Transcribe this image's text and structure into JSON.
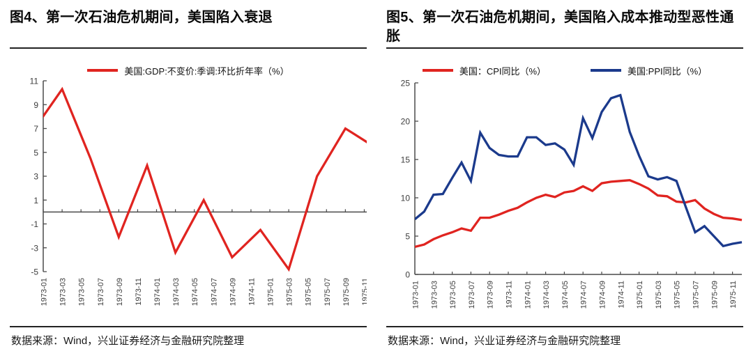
{
  "chart_data": [
    {
      "type": "line",
      "title": "图4、第一次石油危机期间，美国陷入衰退",
      "source": "数据来源：Wind，兴业证券经济与金融研究院整理",
      "legend_position": "top",
      "grid": false,
      "x_range": [
        "1973-01",
        "1975-12"
      ],
      "x_tick_labels": [
        "1973-01",
        "1973-03",
        "1973-05",
        "1973-07",
        "1973-09",
        "1973-11",
        "1974-01",
        "1974-03",
        "1974-05",
        "1974-07",
        "1974-09",
        "1974-11",
        "1975-01",
        "1975-03",
        "1975-05",
        "1975-07",
        "1975-09",
        "1975-11"
      ],
      "ylim": [
        -5,
        11
      ],
      "y_ticks": [
        11,
        9,
        7,
        5,
        3,
        1,
        -1,
        -3,
        -5
      ],
      "x_axis_at_value": 0,
      "axis_color": "#4a4a4a",
      "series": [
        {
          "name": "美国:GDP:不变价:季调:环比折年率（%）",
          "color": "#e02420",
          "x": [
            "1972-12",
            "1973-03",
            "1973-06",
            "1973-09",
            "1973-12",
            "1974-03",
            "1974-06",
            "1974-09",
            "1974-12",
            "1975-03",
            "1975-06",
            "1975-09",
            "1975-12"
          ],
          "values": [
            6.9,
            10.3,
            4.5,
            -2.1,
            3.9,
            -3.4,
            1.0,
            -3.8,
            -1.5,
            -4.8,
            3.0,
            7.0,
            5.5
          ]
        }
      ]
    },
    {
      "type": "line",
      "title": "图5、第一次石油危机期间，美国陷入成本推动型恶性通胀",
      "source": "数据来源：Wind，兴业证券经济与金融研究院整理",
      "legend_position": "top",
      "grid": false,
      "x_range": [
        "1973-01",
        "1975-12"
      ],
      "x_tick_labels": [
        "1973-01",
        "1973-03",
        "1973-05",
        "1973-07",
        "1973-09",
        "1973-11",
        "1974-01",
        "1974-03",
        "1974-05",
        "1974-07",
        "1974-09",
        "1974-11",
        "1975-01",
        "1975-03",
        "1975-05",
        "1975-07",
        "1975-09",
        "1975-11"
      ],
      "ylim": [
        0,
        25
      ],
      "y_ticks": [
        0,
        5,
        10,
        15,
        20,
        25
      ],
      "x_axis_at_value": 0,
      "axis_color": "#4a4a4a",
      "x": [
        "1973-01",
        "1973-02",
        "1973-03",
        "1973-04",
        "1973-05",
        "1973-06",
        "1973-07",
        "1973-08",
        "1973-09",
        "1973-10",
        "1973-11",
        "1973-12",
        "1974-01",
        "1974-02",
        "1974-03",
        "1974-04",
        "1974-05",
        "1974-06",
        "1974-07",
        "1974-08",
        "1974-09",
        "1974-10",
        "1974-11",
        "1974-12",
        "1975-01",
        "1975-02",
        "1975-03",
        "1975-04",
        "1975-05",
        "1975-06",
        "1975-07",
        "1975-08",
        "1975-09",
        "1975-10",
        "1975-11",
        "1975-12"
      ],
      "series": [
        {
          "name": "美国：CPI同比（%）",
          "color": "#e02420",
          "values": [
            3.6,
            3.9,
            4.6,
            5.1,
            5.5,
            6.0,
            5.7,
            7.4,
            7.4,
            7.8,
            8.3,
            8.7,
            9.4,
            10.0,
            10.4,
            10.1,
            10.7,
            10.9,
            11.5,
            10.9,
            11.9,
            12.1,
            12.2,
            12.3,
            11.8,
            11.2,
            10.3,
            10.2,
            9.5,
            9.4,
            9.7,
            8.6,
            7.9,
            7.4,
            7.3,
            7.1
          ]
        },
        {
          "name": "美国:PPI同比（%）",
          "color": "#1b3a8c",
          "values": [
            7.2,
            8.2,
            10.4,
            10.5,
            12.6,
            14.6,
            12.2,
            18.5,
            16.5,
            15.6,
            15.4,
            15.4,
            17.9,
            17.9,
            16.9,
            17.1,
            16.3,
            14.3,
            20.4,
            17.8,
            21.2,
            23.0,
            23.4,
            18.6,
            15.5,
            12.8,
            12.4,
            12.7,
            12.2,
            8.8,
            5.5,
            6.3,
            5.0,
            3.7,
            4.0,
            4.2
          ]
        }
      ]
    }
  ]
}
